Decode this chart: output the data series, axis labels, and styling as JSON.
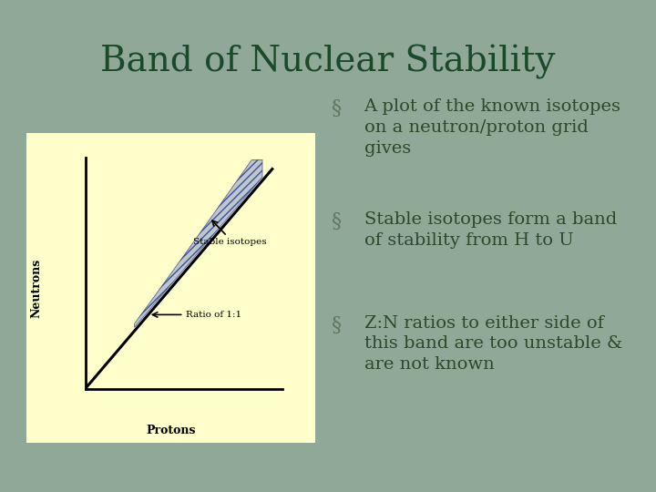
{
  "title": "Band of Nuclear Stability",
  "title_color": "#1a4a2a",
  "title_fontsize": 28,
  "background_color": "#8fa898",
  "panel_bg": "#ffffcc",
  "bullet_symbol": "§",
  "bullet_color": "#607860",
  "bullet_fontsize": 16,
  "bullets": [
    "A plot of the known isotopes\non a neutron/proton grid\ngives",
    "Stable isotopes form a band\nof stability from H to U",
    "Z:N ratios to either side of\nthis band are too unstable &\nare not known"
  ],
  "text_color": "#2a4a2a",
  "bullet_text_fontsize": 14,
  "axis_label_neutrons": "Neutrons",
  "axis_label_protons": "Protons",
  "label_stable": "Stable isotopes",
  "label_ratio": "Ratio of 1:1"
}
